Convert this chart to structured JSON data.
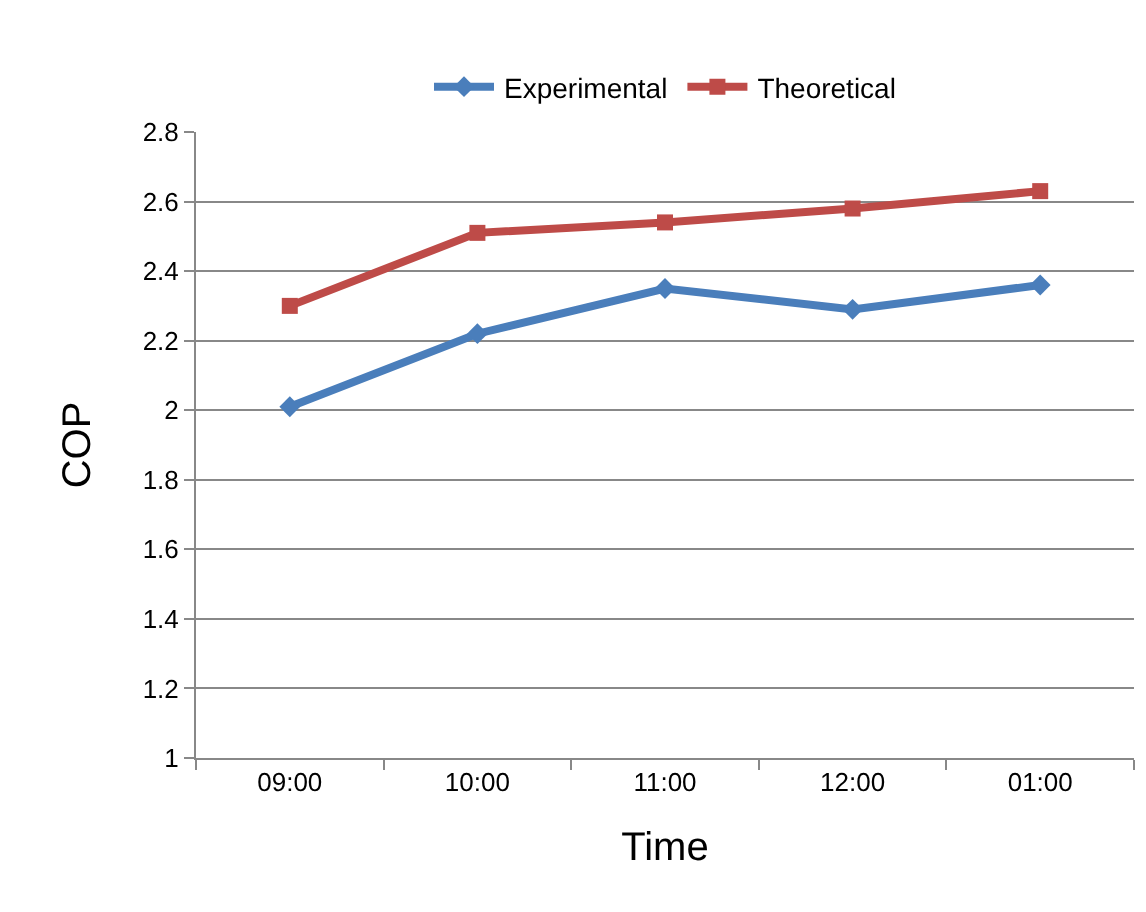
{
  "chart_data": {
    "type": "line",
    "xlabel": "Time",
    "ylabel": "COP",
    "categories": [
      "09:00",
      "10:00",
      "11:00",
      "12:00",
      "01:00"
    ],
    "series": [
      {
        "name": "Experimental",
        "color": "#4a7ebb",
        "values": [
          2.01,
          2.22,
          2.35,
          2.29,
          2.36
        ],
        "marker": "diamond"
      },
      {
        "name": "Theoretical",
        "color": "#be4b48",
        "values": [
          2.3,
          2.51,
          2.54,
          2.58,
          2.63
        ],
        "marker": "square"
      }
    ],
    "ylim": [
      1,
      2.8
    ],
    "yticks": [
      1,
      1.2,
      1.4,
      1.6,
      1.8,
      2,
      2.2,
      2.4,
      2.6,
      2.8
    ],
    "grid": "y",
    "legend": "top",
    "line_style": "solid"
  }
}
